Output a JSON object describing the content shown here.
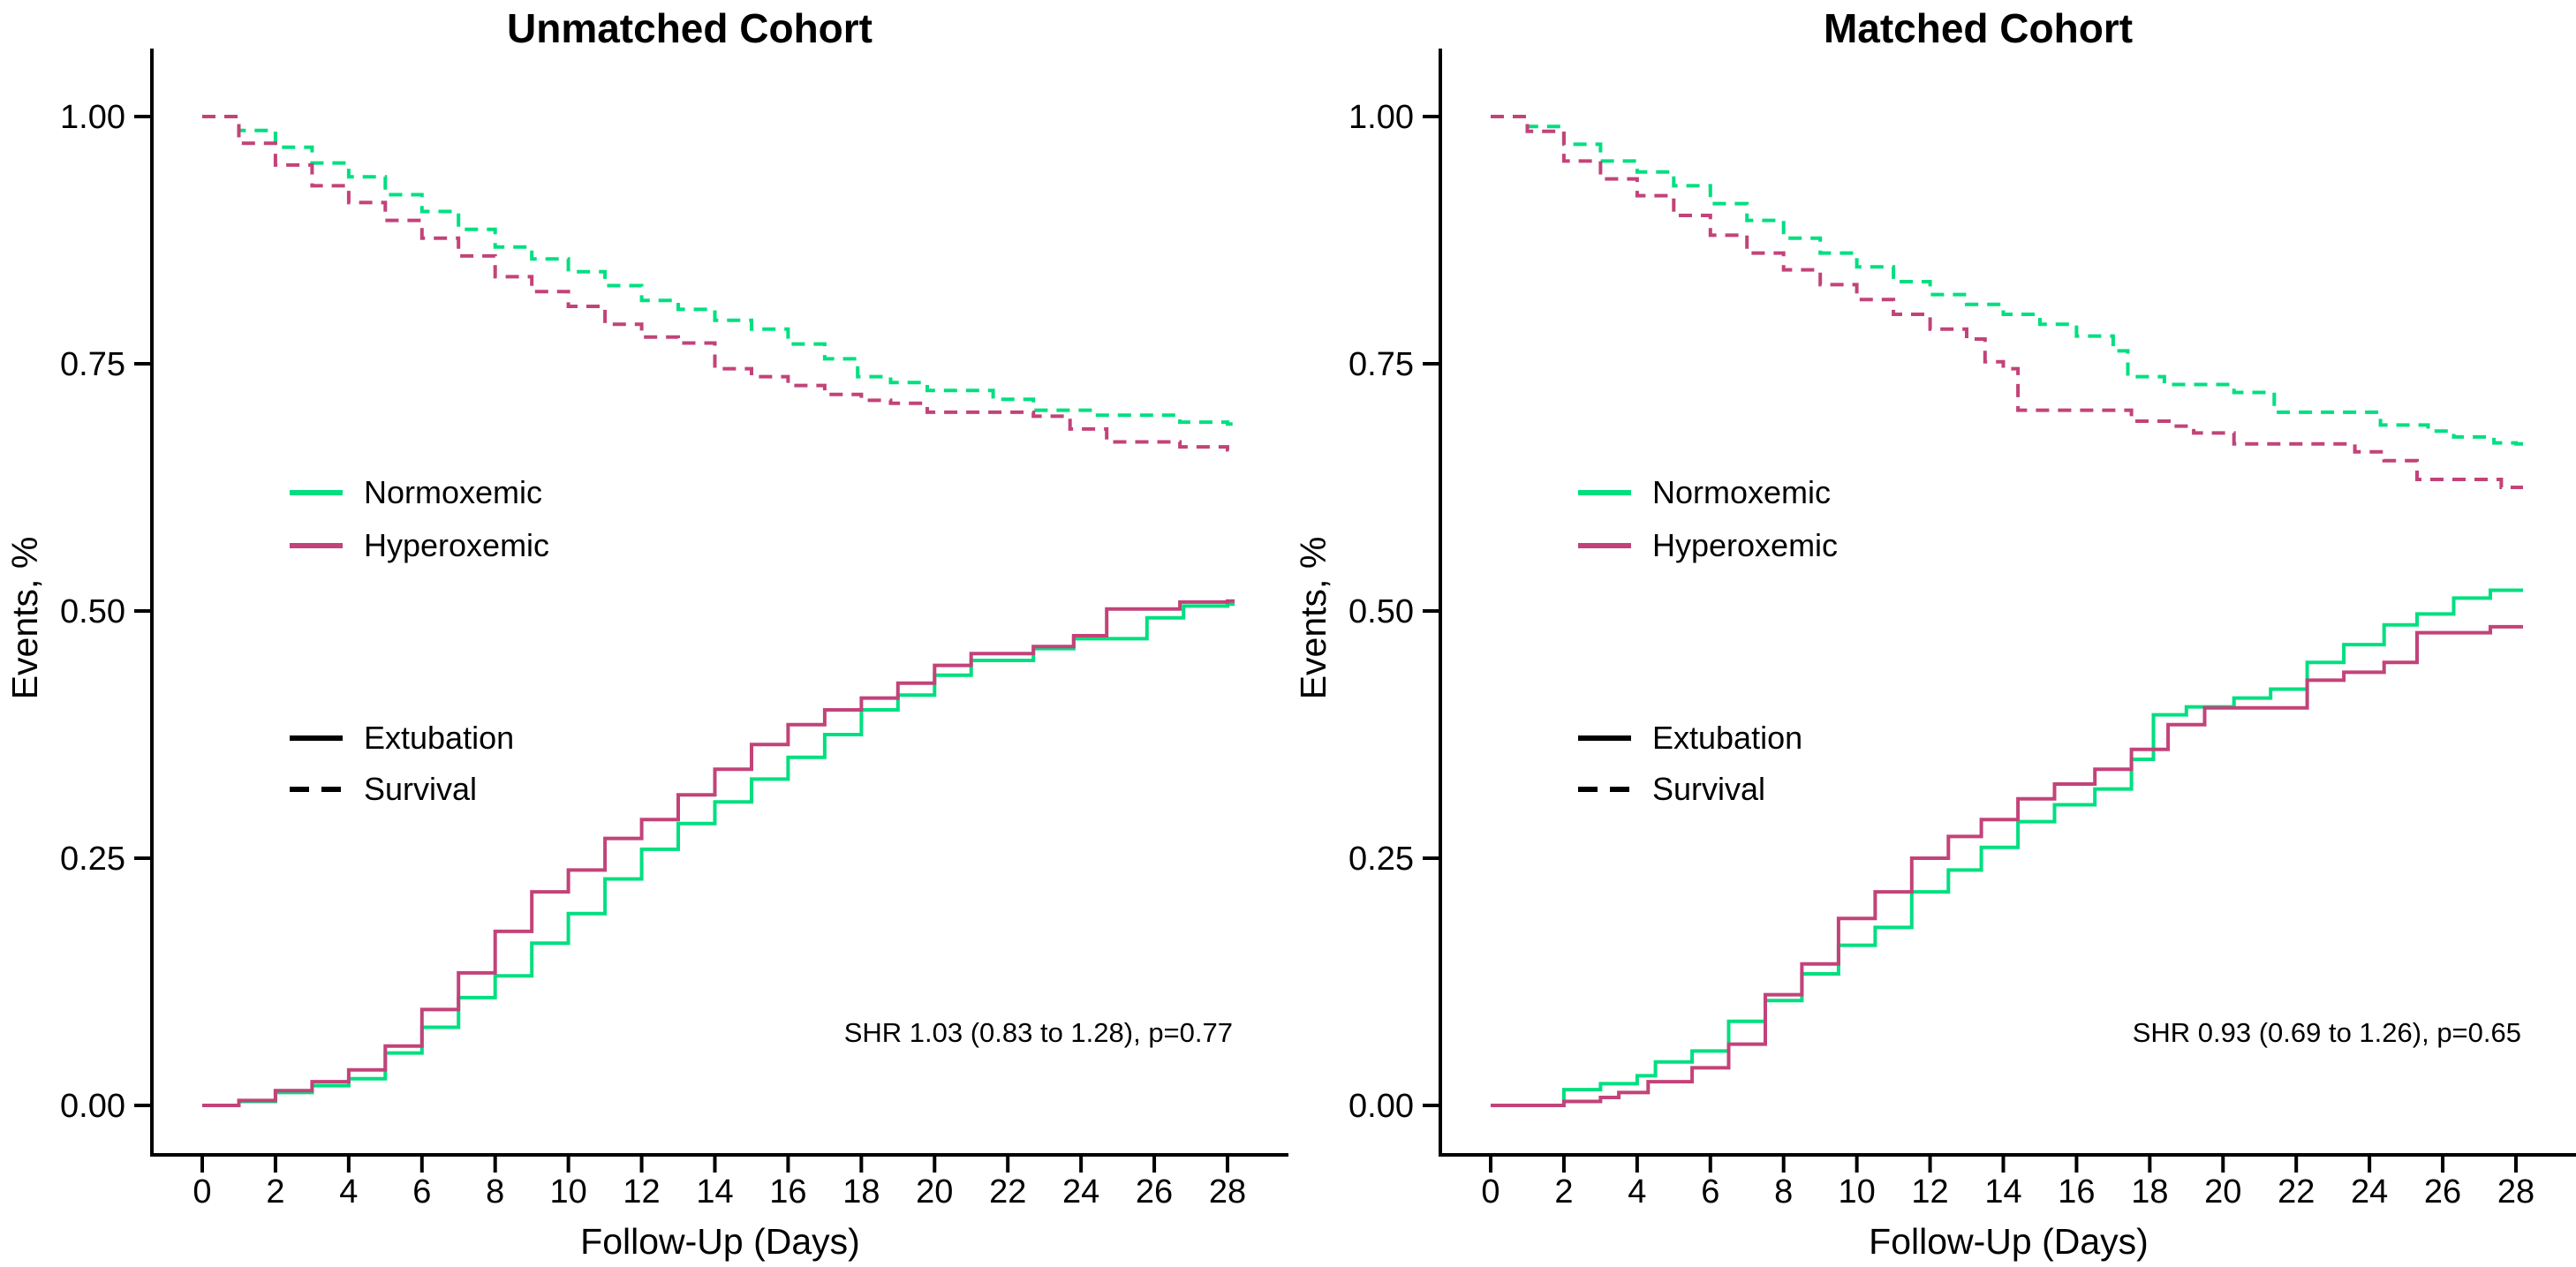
{
  "figure": {
    "background": "#FFFFFF",
    "text_color": "#000000",
    "colors": {
      "normoxemic": "#00DF80",
      "hyperoxemic": "#C24379",
      "axis": "#000000"
    },
    "legend": {
      "series": [
        {
          "key": "normoxemic",
          "label": "Normoxemic"
        },
        {
          "key": "hyperoxemic",
          "label": "Hyperoxemic"
        }
      ],
      "linetypes": [
        {
          "key": "solid",
          "label": "Extubation"
        },
        {
          "key": "dashed",
          "label": "Survival"
        }
      ]
    }
  },
  "chart_data": [
    {
      "type": "line",
      "title": "Unmatched Cohort",
      "xlabel": "Follow-Up (Days)",
      "ylabel": "Events, %",
      "xlim": [
        0,
        28
      ],
      "ylim": [
        0,
        1
      ],
      "x_ticks": [
        0,
        2,
        4,
        6,
        8,
        10,
        12,
        14,
        16,
        18,
        20,
        22,
        24,
        26,
        28
      ],
      "y_tick_values": [
        0,
        0.25,
        0.5,
        0.75,
        1
      ],
      "y_tick_labels": [
        "0.00",
        "0.25",
        "0.50",
        "0.75",
        "1.00"
      ],
      "grid": false,
      "legend_position": "inside-left",
      "annotation": "SHR 1.03 (0.83 to 1.28), p=0.77",
      "series": [
        {
          "name": "Extubation - Normoxemic",
          "group": "normoxemic",
          "linetype": "solid",
          "points": [
            [
              0,
              0
            ],
            [
              1,
              0.004
            ],
            [
              2,
              0.013
            ],
            [
              3,
              0.02
            ],
            [
              4,
              0.027
            ],
            [
              5,
              0.053
            ],
            [
              6,
              0.079
            ],
            [
              7,
              0.109
            ],
            [
              8,
              0.131
            ],
            [
              9,
              0.164
            ],
            [
              10,
              0.194
            ],
            [
              11,
              0.229
            ],
            [
              12,
              0.259
            ],
            [
              13,
              0.285
            ],
            [
              14,
              0.307
            ],
            [
              15,
              0.33
            ],
            [
              16,
              0.352
            ],
            [
              17,
              0.375
            ],
            [
              18,
              0.4
            ],
            [
              19,
              0.415
            ],
            [
              20,
              0.435
            ],
            [
              21,
              0.45
            ],
            [
              22.7,
              0.462
            ],
            [
              23.8,
              0.472
            ],
            [
              25.8,
              0.493
            ],
            [
              26.8,
              0.505
            ],
            [
              28,
              0.507
            ]
          ]
        },
        {
          "name": "Extubation - Hyperoxemic",
          "group": "hyperoxemic",
          "linetype": "solid",
          "points": [
            [
              0,
              0
            ],
            [
              1,
              0.005
            ],
            [
              2,
              0.015
            ],
            [
              3,
              0.024
            ],
            [
              4,
              0.036
            ],
            [
              5,
              0.06
            ],
            [
              6,
              0.097
            ],
            [
              7,
              0.134
            ],
            [
              8,
              0.176
            ],
            [
              9,
              0.216
            ],
            [
              10,
              0.238
            ],
            [
              11,
              0.27
            ],
            [
              12,
              0.289
            ],
            [
              13,
              0.314
            ],
            [
              14,
              0.34
            ],
            [
              15,
              0.365
            ],
            [
              16,
              0.385
            ],
            [
              17,
              0.4
            ],
            [
              18,
              0.412
            ],
            [
              19,
              0.427
            ],
            [
              20,
              0.445
            ],
            [
              21,
              0.457
            ],
            [
              22.7,
              0.464
            ],
            [
              23.8,
              0.475
            ],
            [
              24.7,
              0.502
            ],
            [
              26.7,
              0.509
            ],
            [
              28,
              0.51
            ]
          ]
        },
        {
          "name": "Survival - Normoxemic",
          "group": "normoxemic",
          "linetype": "dashed",
          "points": [
            [
              0,
              1
            ],
            [
              1,
              0.986
            ],
            [
              2,
              0.969
            ],
            [
              3,
              0.953
            ],
            [
              4,
              0.939
            ],
            [
              5,
              0.921
            ],
            [
              6,
              0.904
            ],
            [
              7,
              0.886
            ],
            [
              8,
              0.868
            ],
            [
              9,
              0.856
            ],
            [
              10,
              0.843
            ],
            [
              11,
              0.829
            ],
            [
              12,
              0.814
            ],
            [
              13,
              0.805
            ],
            [
              14,
              0.794
            ],
            [
              15,
              0.785
            ],
            [
              16,
              0.77
            ],
            [
              17,
              0.755
            ],
            [
              17.9,
              0.737
            ],
            [
              18.8,
              0.731
            ],
            [
              19.8,
              0.723
            ],
            [
              21.6,
              0.714
            ],
            [
              22.7,
              0.703
            ],
            [
              24.4,
              0.698
            ],
            [
              26.7,
              0.691
            ],
            [
              28,
              0.689
            ]
          ]
        },
        {
          "name": "Survival - Hyperoxemic",
          "group": "hyperoxemic",
          "linetype": "dashed",
          "points": [
            [
              0,
              1
            ],
            [
              1,
              0.973
            ],
            [
              2,
              0.951
            ],
            [
              3,
              0.93
            ],
            [
              4,
              0.913
            ],
            [
              5,
              0.895
            ],
            [
              6,
              0.877
            ],
            [
              7,
              0.859
            ],
            [
              8,
              0.838
            ],
            [
              9,
              0.823
            ],
            [
              10,
              0.808
            ],
            [
              11,
              0.79
            ],
            [
              12,
              0.777
            ],
            [
              13,
              0.771
            ],
            [
              14,
              0.745
            ],
            [
              15,
              0.737
            ],
            [
              16,
              0.728
            ],
            [
              17,
              0.719
            ],
            [
              18,
              0.713
            ],
            [
              18.8,
              0.71
            ],
            [
              19.8,
              0.701
            ],
            [
              22.7,
              0.697
            ],
            [
              23.7,
              0.684
            ],
            [
              24.7,
              0.671
            ],
            [
              26.7,
              0.666
            ],
            [
              28,
              0.663
            ]
          ]
        }
      ]
    },
    {
      "type": "line",
      "title": "Matched Cohort",
      "xlabel": "Follow-Up (Days)",
      "ylabel": "Events, %",
      "xlim": [
        0,
        28
      ],
      "ylim": [
        0,
        1
      ],
      "x_ticks": [
        0,
        2,
        4,
        6,
        8,
        10,
        12,
        14,
        16,
        18,
        20,
        22,
        24,
        26,
        28
      ],
      "y_tick_values": [
        0,
        0.25,
        0.5,
        0.75,
        1
      ],
      "y_tick_labels": [
        "0.00",
        "0.25",
        "0.50",
        "0.75",
        "1.00"
      ],
      "grid": false,
      "legend_position": "inside-left",
      "annotation": "SHR 0.93 (0.69 to 1.26), p=0.65",
      "series": [
        {
          "name": "Extubation - Normoxemic",
          "group": "normoxemic",
          "linetype": "solid",
          "points": [
            [
              0,
              0
            ],
            [
              2,
              0.016
            ],
            [
              3,
              0.022
            ],
            [
              4,
              0.03
            ],
            [
              4.5,
              0.044
            ],
            [
              5.5,
              0.055
            ],
            [
              6.5,
              0.085
            ],
            [
              7.5,
              0.106
            ],
            [
              8.5,
              0.133
            ],
            [
              9.5,
              0.162
            ],
            [
              10.5,
              0.18
            ],
            [
              11.5,
              0.216
            ],
            [
              12.5,
              0.238
            ],
            [
              13.4,
              0.261
            ],
            [
              14.4,
              0.287
            ],
            [
              15.4,
              0.304
            ],
            [
              16.5,
              0.32
            ],
            [
              17.5,
              0.35
            ],
            [
              18.1,
              0.395
            ],
            [
              19,
              0.403
            ],
            [
              20.3,
              0.412
            ],
            [
              21.3,
              0.421
            ],
            [
              22.3,
              0.448
            ],
            [
              23.3,
              0.466
            ],
            [
              24.4,
              0.486
            ],
            [
              25.3,
              0.497
            ],
            [
              26.3,
              0.513
            ],
            [
              27.3,
              0.521
            ],
            [
              28,
              0.521
            ]
          ]
        },
        {
          "name": "Extubation - Hyperoxemic",
          "group": "hyperoxemic",
          "linetype": "solid",
          "points": [
            [
              0,
              0
            ],
            [
              2,
              0.004
            ],
            [
              3,
              0.008
            ],
            [
              3.5,
              0.013
            ],
            [
              4.3,
              0.024
            ],
            [
              5.5,
              0.038
            ],
            [
              6.5,
              0.062
            ],
            [
              7.5,
              0.112
            ],
            [
              8.5,
              0.143
            ],
            [
              9.5,
              0.189
            ],
            [
              10.5,
              0.216
            ],
            [
              11.5,
              0.25
            ],
            [
              12.5,
              0.272
            ],
            [
              13.4,
              0.289
            ],
            [
              14.4,
              0.31
            ],
            [
              15.4,
              0.325
            ],
            [
              16.5,
              0.34
            ],
            [
              17.5,
              0.36
            ],
            [
              18.5,
              0.385
            ],
            [
              19.5,
              0.402
            ],
            [
              22.3,
              0.43
            ],
            [
              23.3,
              0.438
            ],
            [
              24.4,
              0.448
            ],
            [
              25.3,
              0.478
            ],
            [
              27.3,
              0.484
            ],
            [
              28,
              0.484
            ]
          ]
        },
        {
          "name": "Survival - Normoxemic",
          "group": "normoxemic",
          "linetype": "dashed",
          "points": [
            [
              0,
              1
            ],
            [
              1,
              0.99
            ],
            [
              2,
              0.972
            ],
            [
              3,
              0.955
            ],
            [
              4,
              0.944
            ],
            [
              5,
              0.93
            ],
            [
              6,
              0.912
            ],
            [
              7,
              0.895
            ],
            [
              8,
              0.877
            ],
            [
              9,
              0.862
            ],
            [
              10,
              0.848
            ],
            [
              11,
              0.833
            ],
            [
              12,
              0.82
            ],
            [
              13,
              0.81
            ],
            [
              14,
              0.8
            ],
            [
              15,
              0.79
            ],
            [
              16,
              0.778
            ],
            [
              17,
              0.763
            ],
            [
              17.4,
              0.737
            ],
            [
              18.4,
              0.729
            ],
            [
              20.3,
              0.721
            ],
            [
              21.4,
              0.701
            ],
            [
              24.3,
              0.688
            ],
            [
              25.6,
              0.682
            ],
            [
              26.3,
              0.676
            ],
            [
              27.4,
              0.67
            ],
            [
              28,
              0.669
            ]
          ]
        },
        {
          "name": "Survival - Hyperoxemic",
          "group": "hyperoxemic",
          "linetype": "dashed",
          "points": [
            [
              0,
              1
            ],
            [
              1,
              0.985
            ],
            [
              2,
              0.955
            ],
            [
              3,
              0.937
            ],
            [
              4,
              0.92
            ],
            [
              5,
              0.9
            ],
            [
              6,
              0.88
            ],
            [
              7,
              0.862
            ],
            [
              8,
              0.845
            ],
            [
              9,
              0.83
            ],
            [
              10,
              0.815
            ],
            [
              11,
              0.8
            ],
            [
              12,
              0.785
            ],
            [
              13,
              0.775
            ],
            [
              13.5,
              0.752
            ],
            [
              14,
              0.745
            ],
            [
              14.4,
              0.703
            ],
            [
              17.5,
              0.692
            ],
            [
              18.6,
              0.687
            ],
            [
              19.2,
              0.68
            ],
            [
              20.3,
              0.669
            ],
            [
              23.6,
              0.661
            ],
            [
              24.4,
              0.652
            ],
            [
              25.3,
              0.633
            ],
            [
              27.6,
              0.625
            ],
            [
              28,
              0.625
            ]
          ]
        }
      ]
    }
  ]
}
